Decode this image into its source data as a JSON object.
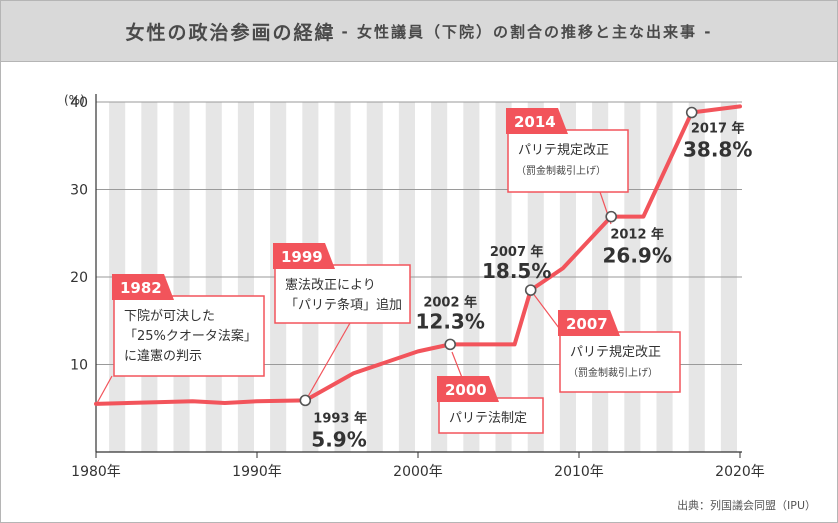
{
  "title": {
    "main": "女性の政治参画の経緯",
    "sub": "- 女性議員（下院）の割合の推移と主な出来事 -"
  },
  "source": "出典：列国議会同盟（IPU）",
  "colors": {
    "line": "#f2545b",
    "stripe": "#e6e6e6",
    "title_bg": "#d9d9d9",
    "text": "#333333"
  },
  "chart_data": {
    "type": "line",
    "unit_label": "(%)",
    "xlim": [
      1980,
      2020
    ],
    "ylim": [
      0,
      40
    ],
    "x_ticks": [
      1980,
      1990,
      2000,
      2010,
      2020
    ],
    "x_tick_labels": [
      "1980年",
      "1990年",
      "2000年",
      "2010年",
      "2020年"
    ],
    "y_ticks": [
      10,
      20,
      30,
      40
    ],
    "y_tick_labels": [
      "10",
      "20",
      "30",
      "40"
    ],
    "grid": "alternating vertical stripes, one per year",
    "series": [
      {
        "x": [
          1980,
          1984,
          1986,
          1988,
          1990,
          1993,
          1996,
          2000,
          2002,
          2003,
          2006,
          2007,
          2009,
          2012,
          2014,
          2017,
          2020
        ],
        "y": [
          5.5,
          5.7,
          5.8,
          5.6,
          5.8,
          5.9,
          9.0,
          11.5,
          12.3,
          12.3,
          12.3,
          18.5,
          21.0,
          26.9,
          26.9,
          38.8,
          39.5
        ]
      }
    ],
    "highlighted_points": [
      {
        "x": 1993,
        "y": 5.9,
        "year_label": "1993 年",
        "value_label": "5.9%"
      },
      {
        "x": 2002,
        "y": 12.3,
        "year_label": "2002 年",
        "value_label": "12.3%"
      },
      {
        "x": 2007,
        "y": 18.5,
        "year_label": "2007 年",
        "value_label": "18.5%"
      },
      {
        "x": 2012,
        "y": 26.9,
        "year_label": "2012 年",
        "value_label": "26.9%"
      },
      {
        "x": 2017,
        "y": 38.8,
        "year_label": "2017 年",
        "value_label": "38.8%"
      }
    ],
    "events": [
      {
        "year": "1982",
        "anchor_x": 1980,
        "lines": [
          "下院が可決した",
          "「25%クオータ法案」",
          "に違憲の判示"
        ]
      },
      {
        "year": "1999",
        "anchor_x": 1994,
        "lines": [
          "憲法改正により",
          "「パリテ条項」追加"
        ]
      },
      {
        "year": "2000",
        "anchor_x": 2001,
        "lines": [
          "パリテ法制定"
        ]
      },
      {
        "year": "2007",
        "anchor_x": 2007,
        "lines": [
          "パリテ規定改正"
        ],
        "note": "（罰金制裁引上げ）"
      },
      {
        "year": "2014",
        "anchor_x": 2014,
        "lines": [
          "パリテ規定改正"
        ],
        "note": "（罰金制裁引上げ）"
      }
    ]
  }
}
